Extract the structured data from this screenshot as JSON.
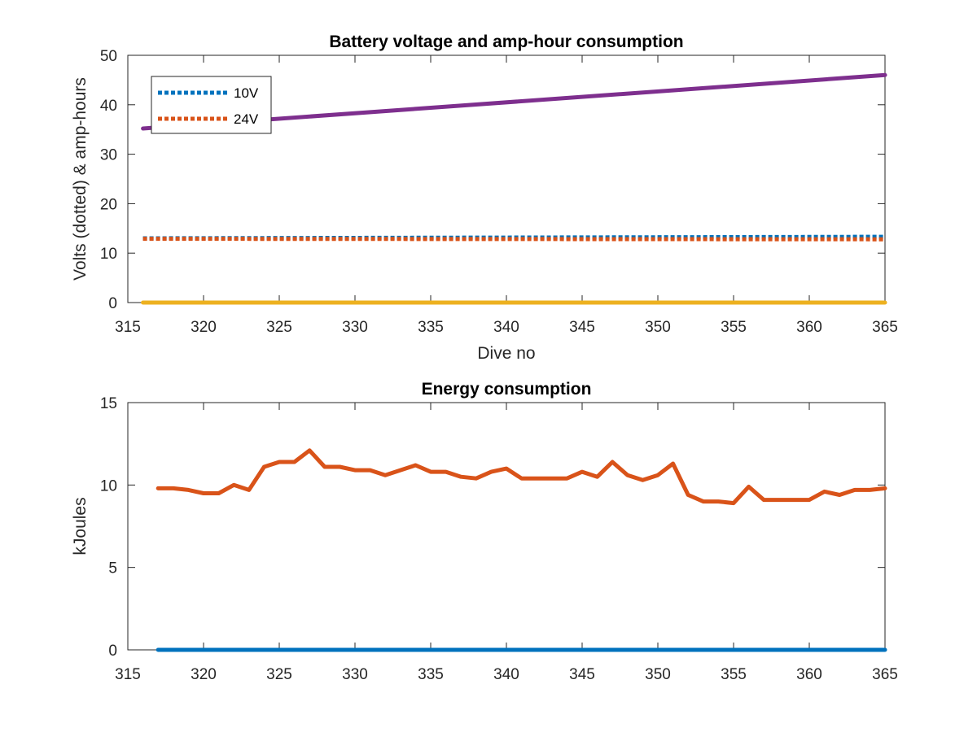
{
  "chart_data": [
    {
      "type": "line",
      "title": "Battery voltage and amp-hour consumption",
      "xlabel": "Dive no",
      "ylabel": "Volts (dotted) & amp-hours",
      "xlim": [
        315,
        365
      ],
      "ylim": [
        0,
        50
      ],
      "xticks": [
        "315",
        "320",
        "325",
        "330",
        "335",
        "340",
        "345",
        "350",
        "355",
        "360",
        "365"
      ],
      "yticks": [
        "0",
        "10",
        "20",
        "30",
        "40",
        "50"
      ],
      "grid": false,
      "legend": {
        "placement": "top-left",
        "entries": [
          "10V",
          "24V"
        ]
      },
      "series": [
        {
          "name": "10V",
          "style": "dotted",
          "color": "#0072BD",
          "x": [
            316,
            365
          ],
          "y": [
            13.0,
            13.3
          ]
        },
        {
          "name": "24V",
          "style": "dotted",
          "color": "#D95319",
          "x": [
            316,
            365
          ],
          "y": [
            12.9,
            12.8
          ]
        },
        {
          "style": "solid",
          "color": "#7E2F8E",
          "x": [
            316,
            365
          ],
          "y": [
            35.2,
            46.0
          ]
        },
        {
          "style": "solid",
          "color": "#EDB120",
          "x": [
            316,
            365
          ],
          "y": [
            0,
            0
          ]
        }
      ]
    },
    {
      "type": "line",
      "title": "Energy consumption",
      "xlabel": "",
      "ylabel": "kJoules",
      "xlim": [
        315,
        365
      ],
      "ylim": [
        0,
        15
      ],
      "xticks": [
        "315",
        "320",
        "325",
        "330",
        "335",
        "340",
        "345",
        "350",
        "355",
        "360",
        "365"
      ],
      "yticks": [
        "0",
        "5",
        "10",
        "15"
      ],
      "grid": false,
      "series": [
        {
          "style": "solid",
          "color": "#0072BD",
          "x": [
            317,
            365
          ],
          "y": [
            0,
            0
          ]
        },
        {
          "style": "solid",
          "color": "#D95319",
          "x": [
            317,
            318,
            319,
            320,
            321,
            322,
            323,
            324,
            325,
            326,
            327,
            328,
            329,
            330,
            331,
            332,
            333,
            334,
            335,
            336,
            337,
            338,
            339,
            340,
            341,
            342,
            343,
            344,
            345,
            346,
            347,
            348,
            349,
            350,
            351,
            352,
            353,
            354,
            355,
            356,
            357,
            358,
            359,
            360,
            361,
            362,
            363,
            364,
            365
          ],
          "y": [
            9.8,
            9.8,
            9.7,
            9.5,
            9.5,
            10.0,
            9.7,
            11.1,
            11.4,
            11.4,
            12.1,
            11.1,
            11.1,
            10.9,
            10.9,
            10.6,
            10.9,
            11.2,
            10.8,
            10.8,
            10.5,
            10.4,
            10.8,
            11.0,
            10.4,
            10.4,
            10.4,
            10.4,
            10.8,
            10.5,
            11.4,
            10.6,
            10.3,
            10.6,
            11.3,
            9.4,
            9.0,
            9.0,
            8.9,
            9.9,
            9.1,
            9.1,
            9.1,
            9.1,
            9.6,
            9.4,
            9.7,
            9.7,
            9.8
          ]
        }
      ]
    }
  ]
}
